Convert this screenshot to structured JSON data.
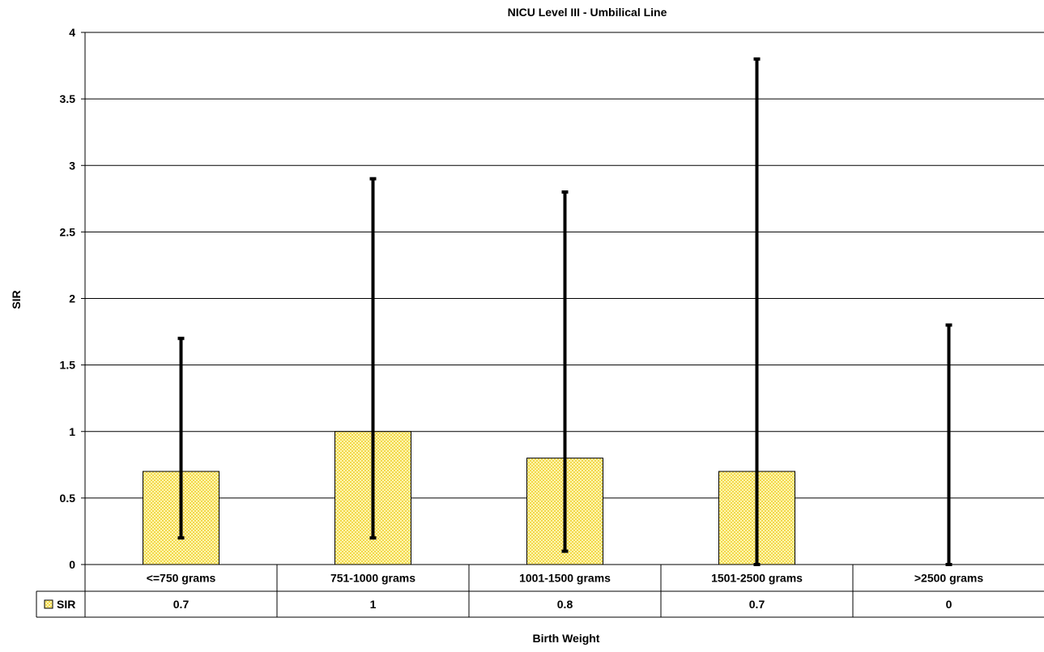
{
  "chart_data": {
    "type": "bar",
    "title": "NICU Level III - Umbilical Line",
    "xlabel": "Birth Weight",
    "ylabel": "SIR",
    "categories": [
      "<=750 grams",
      "751-1000 grams",
      "1001-1500 grams",
      "1501-2500 grams",
      ">2500 grams"
    ],
    "series": [
      {
        "name": "SIR",
        "values": [
          0.7,
          1,
          0.8,
          0.7,
          0
        ],
        "value_labels": [
          "0.7",
          "1",
          "0.8",
          "0.7",
          "0"
        ],
        "error_low": [
          0.2,
          0.2,
          0.1,
          0,
          0
        ],
        "error_high": [
          1.7,
          2.9,
          2.8,
          3.8,
          1.8
        ]
      }
    ],
    "ylim": [
      0,
      4
    ],
    "yticks": [
      0,
      0.5,
      1,
      1.5,
      2,
      2.5,
      3,
      3.5,
      4
    ],
    "ytick_labels": [
      "0",
      "0.5",
      "1",
      "1.5",
      "2",
      "2.5",
      "3",
      "3.5",
      "4"
    ],
    "grid": true,
    "legend": "data-table",
    "colors": {
      "bar_fill": "#F2D84C",
      "bar_pattern_dot": "#FFF6B0",
      "bar_stroke": "#000000",
      "error_bar": "#000000",
      "grid": "#000000",
      "text": "#000000"
    }
  }
}
